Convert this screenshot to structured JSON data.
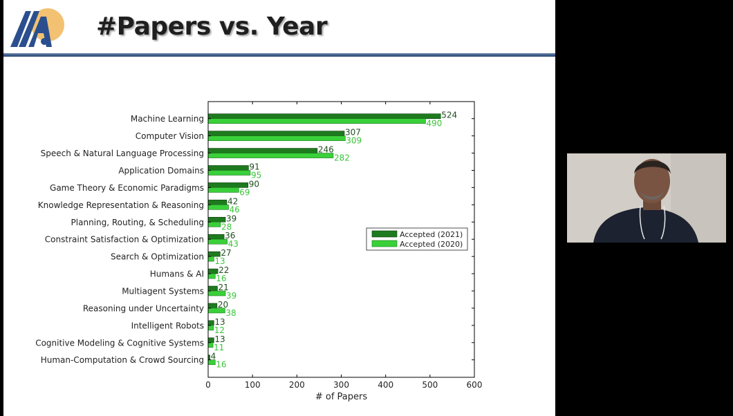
{
  "slide": {
    "title": "#Papers vs. Year"
  },
  "colors": {
    "accepted_2021": "#1e7a1e",
    "accepted_2020": "#3ad03a",
    "label_2021": "#1f4f1f",
    "label_2020": "#3ac43a",
    "title_rule": "#23406e",
    "logo_blue": "#2b4f8e",
    "logo_sun": "#f2c272"
  },
  "icons": {
    "logo": "aaai-logo",
    "webcam": "presenter-webcam"
  },
  "chart_data": {
    "type": "bar",
    "orientation": "horizontal",
    "title": "",
    "xlabel": "# of Papers",
    "ylabel": "",
    "xlim": [
      0,
      600
    ],
    "xticks": [
      0,
      100,
      200,
      300,
      400,
      500,
      600
    ],
    "grid": false,
    "legend_position": "center-right",
    "categories": [
      "Machine Learning",
      "Computer Vision",
      "Speech & Natural Language Processing",
      "Application Domains",
      "Game Theory & Economic Paradigms",
      "Knowledge Representation & Reasoning",
      "Planning, Routing, & Scheduling",
      "Constraint Satisfaction & Optimization",
      "Search & Optimization",
      "Humans & AI",
      "Multiagent Systems",
      "Reasoning under Uncertainty",
      "Intelligent Robots",
      "Cognitive Modeling & Cognitive Systems",
      "Human-Computation & Crowd Sourcing"
    ],
    "series": [
      {
        "name": "Accepted (2021)",
        "values": [
          524,
          307,
          246,
          91,
          90,
          42,
          39,
          36,
          27,
          22,
          21,
          20,
          13,
          13,
          4
        ]
      },
      {
        "name": "Accepted (2020)",
        "values": [
          490,
          309,
          282,
          95,
          69,
          46,
          28,
          43,
          13,
          16,
          39,
          38,
          12,
          11,
          16
        ]
      }
    ]
  }
}
